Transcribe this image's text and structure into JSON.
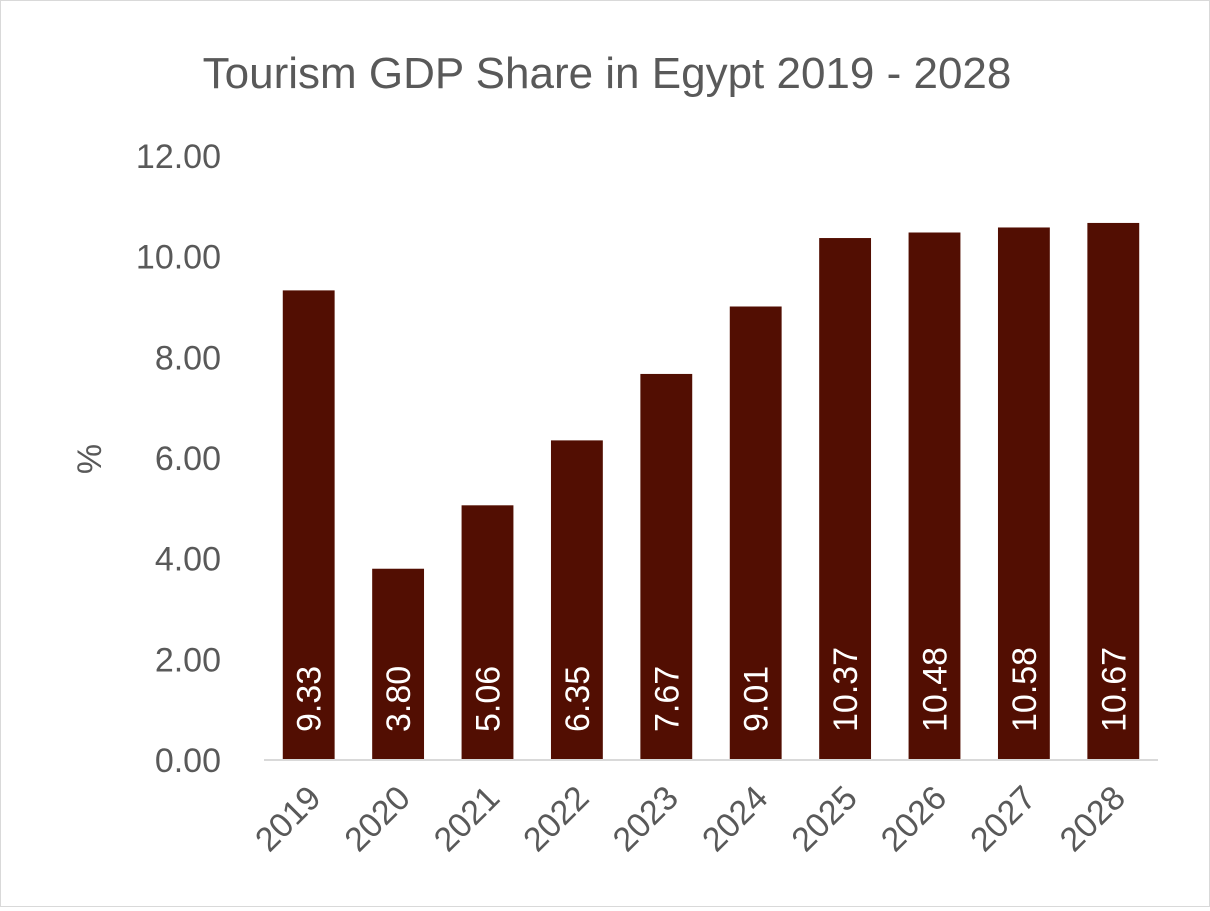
{
  "chart_data": {
    "type": "bar",
    "title": "Tourism GDP Share in Egypt 2019 - 2028",
    "xlabel": "",
    "ylabel": "%",
    "categories": [
      "2019",
      "2020",
      "2021",
      "2022",
      "2023",
      "2024",
      "2025",
      "2026",
      "2027",
      "2028"
    ],
    "values": [
      9.33,
      3.8,
      5.06,
      6.35,
      7.67,
      9.01,
      10.37,
      10.48,
      10.58,
      10.67
    ],
    "data_labels": [
      "9.33",
      "3.80",
      "5.06",
      "6.35",
      "7.67",
      "9.01",
      "10.37",
      "10.48",
      "10.58",
      "10.67"
    ],
    "ylim": [
      0,
      12
    ],
    "yticks": [
      "0.00",
      "2.00",
      "4.00",
      "6.00",
      "8.00",
      "10.00",
      "12.00"
    ],
    "grid": false,
    "legend": "none",
    "colors": {
      "bar": "#520e02",
      "text": "#595959",
      "data_label": "#ffffff",
      "axis": "#d9d9d9"
    }
  }
}
